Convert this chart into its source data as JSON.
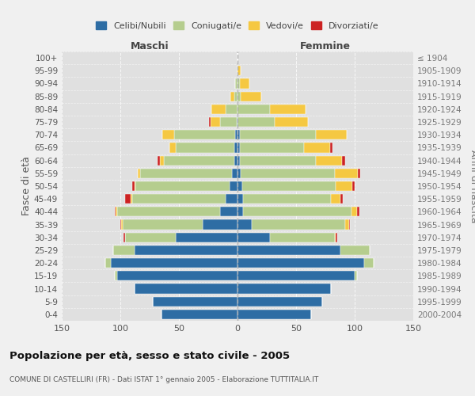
{
  "age_groups": [
    "100+",
    "95-99",
    "90-94",
    "85-89",
    "80-84",
    "75-79",
    "70-74",
    "65-69",
    "60-64",
    "55-59",
    "50-54",
    "45-49",
    "40-44",
    "35-39",
    "30-34",
    "25-29",
    "20-24",
    "15-19",
    "10-14",
    "5-9",
    "0-4"
  ],
  "birth_years": [
    "≤ 1904",
    "1905-1909",
    "1910-1914",
    "1915-1919",
    "1920-1924",
    "1925-1929",
    "1930-1934",
    "1935-1939",
    "1940-1944",
    "1945-1949",
    "1950-1954",
    "1955-1959",
    "1960-1964",
    "1965-1969",
    "1970-1974",
    "1975-1979",
    "1980-1984",
    "1985-1989",
    "1990-1994",
    "1995-1999",
    "2000-2004"
  ],
  "maschi": {
    "celibi": [
      0,
      0,
      0,
      0,
      0,
      1,
      2,
      3,
      3,
      5,
      7,
      10,
      15,
      30,
      53,
      88,
      108,
      103,
      88,
      72,
      65
    ],
    "coniugati": [
      0,
      0,
      2,
      3,
      10,
      14,
      52,
      50,
      60,
      78,
      80,
      80,
      88,
      68,
      43,
      18,
      5,
      2,
      0,
      0,
      0
    ],
    "vedovi": [
      0,
      0,
      0,
      3,
      12,
      8,
      10,
      5,
      3,
      2,
      1,
      1,
      1,
      1,
      0,
      0,
      0,
      0,
      0,
      0,
      0
    ],
    "divorziati": [
      0,
      0,
      0,
      0,
      0,
      1,
      0,
      0,
      2,
      0,
      2,
      5,
      1,
      1,
      1,
      0,
      0,
      0,
      0,
      0,
      0
    ]
  },
  "femmine": {
    "nubili": [
      0,
      0,
      0,
      0,
      0,
      0,
      2,
      2,
      2,
      3,
      4,
      5,
      5,
      12,
      28,
      88,
      108,
      100,
      80,
      72,
      63
    ],
    "coniugate": [
      0,
      0,
      2,
      3,
      28,
      32,
      65,
      55,
      65,
      80,
      80,
      75,
      92,
      80,
      55,
      25,
      8,
      2,
      0,
      0,
      0
    ],
    "vedove": [
      0,
      3,
      8,
      17,
      30,
      28,
      26,
      22,
      22,
      20,
      14,
      8,
      5,
      3,
      1,
      0,
      0,
      0,
      0,
      0,
      0
    ],
    "divorziate": [
      0,
      0,
      0,
      0,
      0,
      0,
      0,
      2,
      3,
      2,
      2,
      2,
      2,
      1,
      1,
      0,
      0,
      0,
      0,
      0,
      0
    ]
  },
  "colors": {
    "celibi_nubili": "#2e6da4",
    "coniugati": "#b5cd8e",
    "vedovi": "#f5c842",
    "divorziati": "#cc2222"
  },
  "xlim": 150,
  "title": "Popolazione per età, sesso e stato civile - 2005",
  "subtitle": "COMUNE DI CASTELLIRI (FR) - Dati ISTAT 1° gennaio 2005 - Elaborazione TUTTITALIA.IT",
  "ylabel_left": "Fasce di età",
  "ylabel_right": "Anni di nascita",
  "xlabel_maschi": "Maschi",
  "xlabel_femmine": "Femmine",
  "bg_color": "#f0f0f0",
  "plot_bg": "#e0e0e0",
  "grid_color": "#ffffff"
}
